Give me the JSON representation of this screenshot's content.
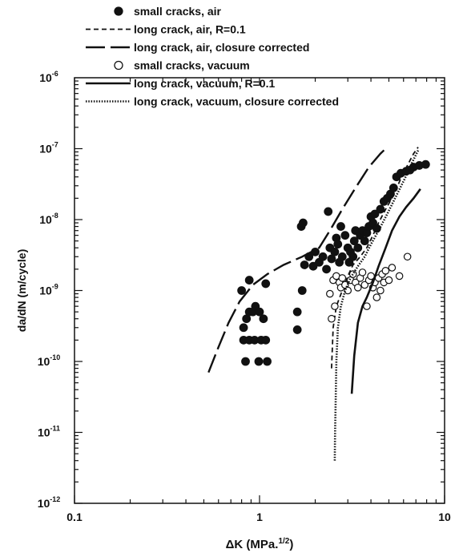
{
  "chart_data": {
    "type": "scatter",
    "title": "",
    "xlabel": "ΔK (MPa.",
    "xlabel_sup": "1/2",
    "xlabel_close": ")",
    "ylabel": "da/dN (m/cycle)",
    "xscale": "log",
    "yscale": "log",
    "xlim": [
      0.1,
      10
    ],
    "ylim": [
      1e-12,
      1e-06
    ],
    "x_ticks": [
      {
        "value": 0.1,
        "label": "0.1"
      },
      {
        "value": 1,
        "label": "1"
      },
      {
        "value": 10,
        "label": "10"
      }
    ],
    "y_ticks": [
      {
        "value": 1e-12,
        "base": "10",
        "exp": "-12"
      },
      {
        "value": 1e-11,
        "base": "10",
        "exp": "-11"
      },
      {
        "value": 1e-10,
        "base": "10",
        "exp": "-10"
      },
      {
        "value": 1e-09,
        "base": "10",
        "exp": "-9"
      },
      {
        "value": 1e-08,
        "base": "10",
        "exp": "-8"
      },
      {
        "value": 1e-07,
        "base": "10",
        "exp": "-7"
      },
      {
        "value": 1e-06,
        "base": "10",
        "exp": "-6"
      }
    ],
    "grid": false,
    "legend_position": "top-left",
    "series": [
      {
        "name": "small cracks, air",
        "style": "filled-circle",
        "points": [
          [
            0.8,
            1e-09
          ],
          [
            0.88,
            1.4e-09
          ],
          [
            0.82,
            3e-10
          ],
          [
            0.85,
            4e-10
          ],
          [
            0.88,
            5e-10
          ],
          [
            0.92,
            5e-10
          ],
          [
            0.95,
            6e-10
          ],
          [
            1.0,
            5e-10
          ],
          [
            1.05,
            4e-10
          ],
          [
            1.08,
            1.25e-09
          ],
          [
            0.82,
            2e-10
          ],
          [
            0.88,
            2e-10
          ],
          [
            0.94,
            2e-10
          ],
          [
            1.02,
            2e-10
          ],
          [
            1.08,
            2e-10
          ],
          [
            0.84,
            1e-10
          ],
          [
            0.99,
            1e-10
          ],
          [
            1.1,
            1e-10
          ],
          [
            1.6,
            2.8e-10
          ],
          [
            1.6,
            5e-10
          ],
          [
            1.7,
            1e-09
          ],
          [
            1.68,
            8e-09
          ],
          [
            1.72,
            9e-09
          ],
          [
            1.75,
            2.3e-09
          ],
          [
            1.85,
            3e-09
          ],
          [
            1.95,
            2.2e-09
          ],
          [
            2.0,
            3.5e-09
          ],
          [
            2.1,
            2.5e-09
          ],
          [
            2.2,
            3e-09
          ],
          [
            2.3,
            2e-09
          ],
          [
            2.35,
            1.3e-08
          ],
          [
            2.4,
            4e-09
          ],
          [
            2.45,
            2.8e-09
          ],
          [
            2.55,
            3.5e-09
          ],
          [
            2.6,
            5.5e-09
          ],
          [
            2.65,
            4.5e-09
          ],
          [
            2.7,
            2.5e-09
          ],
          [
            2.75,
            8e-09
          ],
          [
            2.8,
            3e-09
          ],
          [
            2.9,
            6e-09
          ],
          [
            3.0,
            4e-09
          ],
          [
            3.05,
            2.5e-09
          ],
          [
            3.1,
            3.5e-09
          ],
          [
            3.2,
            3e-09
          ],
          [
            3.25,
            5e-09
          ],
          [
            3.3,
            7e-09
          ],
          [
            3.4,
            4e-09
          ],
          [
            3.5,
            6e-09
          ],
          [
            3.6,
            7e-09
          ],
          [
            3.7,
            5e-09
          ],
          [
            3.8,
            6.5e-09
          ],
          [
            3.9,
            8e-09
          ],
          [
            4.0,
            1.1e-08
          ],
          [
            4.1,
            9e-09
          ],
          [
            4.2,
            1.2e-08
          ],
          [
            4.3,
            7.5e-09
          ],
          [
            4.5,
            1.4e-08
          ],
          [
            4.7,
            1.8e-08
          ],
          [
            4.9,
            2e-08
          ],
          [
            5.1,
            2.3e-08
          ],
          [
            5.3,
            2.8e-08
          ],
          [
            5.5,
            4e-08
          ],
          [
            5.8,
            4.5e-08
          ],
          [
            6.2,
            4.8e-08
          ],
          [
            6.8,
            5.5e-08
          ],
          [
            7.3,
            5.8e-08
          ],
          [
            7.9,
            6e-08
          ],
          [
            6.5,
            5e-08
          ]
        ]
      },
      {
        "name": "long crack, air, R=0.1",
        "style": "dashed",
        "points": [
          [
            2.45,
            8e-11
          ],
          [
            2.5,
            3e-10
          ],
          [
            2.6,
            6e-10
          ],
          [
            2.8,
            1e-09
          ],
          [
            3.0,
            1.6e-09
          ],
          [
            3.2,
            2.3e-09
          ],
          [
            3.5,
            3e-09
          ],
          [
            3.8,
            4e-09
          ],
          [
            4.1,
            6e-09
          ],
          [
            4.4,
            9e-09
          ],
          [
            4.8,
            1.4e-08
          ],
          [
            5.3,
            2.2e-08
          ],
          [
            5.8,
            3.8e-08
          ],
          [
            6.3,
            5.8e-08
          ],
          [
            6.8,
            8.5e-08
          ],
          [
            7.2,
            1.05e-07
          ]
        ]
      },
      {
        "name": "long crack, air, closure corrected",
        "style": "long-dash",
        "points": [
          [
            0.53,
            7e-11
          ],
          [
            0.6,
            1.6e-10
          ],
          [
            0.68,
            3.5e-10
          ],
          [
            0.78,
            7e-10
          ],
          [
            0.92,
            1.2e-09
          ],
          [
            1.1,
            1.7e-09
          ],
          [
            1.35,
            2.3e-09
          ],
          [
            1.7,
            3e-09
          ],
          [
            2.1,
            4e-09
          ],
          [
            2.4,
            7e-09
          ],
          [
            2.8,
            1.4e-08
          ],
          [
            3.3,
            2.8e-08
          ],
          [
            3.9,
            5.5e-08
          ],
          [
            4.5,
            8.5e-08
          ],
          [
            4.9,
            1.05e-07
          ]
        ]
      },
      {
        "name": "small cracks, vacuum",
        "style": "open-circle",
        "points": [
          [
            2.4,
            9e-10
          ],
          [
            2.45,
            4e-10
          ],
          [
            2.5,
            1.4e-09
          ],
          [
            2.55,
            6e-10
          ],
          [
            2.6,
            1.6e-09
          ],
          [
            2.7,
            1.3e-09
          ],
          [
            2.75,
            1.1e-09
          ],
          [
            2.8,
            1.5e-09
          ],
          [
            2.9,
            1.2e-09
          ],
          [
            3.0,
            1e-09
          ],
          [
            3.1,
            1.4e-09
          ],
          [
            3.2,
            1.7e-09
          ],
          [
            3.3,
            1.3e-09
          ],
          [
            3.4,
            1.1e-09
          ],
          [
            3.5,
            1.5e-09
          ],
          [
            3.6,
            1.8e-09
          ],
          [
            3.7,
            1.2e-09
          ],
          [
            3.8,
            6e-10
          ],
          [
            3.9,
            1.4e-09
          ],
          [
            4.0,
            1.6e-09
          ],
          [
            4.1,
            1.1e-09
          ],
          [
            4.2,
            1.3e-09
          ],
          [
            4.3,
            8e-10
          ],
          [
            4.4,
            1.5e-09
          ],
          [
            4.5,
            1e-09
          ],
          [
            4.6,
            1.7e-09
          ],
          [
            4.7,
            1.3e-09
          ],
          [
            4.8,
            1.9e-09
          ],
          [
            5.0,
            1.4e-09
          ],
          [
            5.2,
            2.1e-09
          ],
          [
            5.7,
            1.6e-09
          ],
          [
            6.3,
            3e-09
          ]
        ]
      },
      {
        "name": "long crack, vacuum, R=0.1",
        "style": "solid",
        "points": [
          [
            3.15,
            3.5e-11
          ],
          [
            3.25,
            1.2e-10
          ],
          [
            3.4,
            3.5e-10
          ],
          [
            3.6,
            6e-10
          ],
          [
            3.8,
            8e-10
          ],
          [
            4.1,
            1.3e-09
          ],
          [
            4.4,
            2.2e-09
          ],
          [
            4.8,
            4e-09
          ],
          [
            5.2,
            7e-09
          ],
          [
            5.7,
            1.1e-08
          ],
          [
            6.2,
            1.5e-08
          ],
          [
            6.8,
            2e-08
          ],
          [
            7.4,
            2.7e-08
          ]
        ]
      },
      {
        "name": "long crack, vacuum, closure corrected",
        "style": "dotted",
        "points": [
          [
            2.55,
            4e-12
          ],
          [
            2.56,
            1e-11
          ],
          [
            2.58,
            3e-11
          ],
          [
            2.6,
            1e-10
          ],
          [
            2.65,
            3e-10
          ],
          [
            2.75,
            6e-10
          ],
          [
            2.9,
            1e-09
          ],
          [
            3.1,
            1.5e-09
          ],
          [
            3.4,
            2.2e-09
          ],
          [
            3.7,
            3e-09
          ],
          [
            4.0,
            4.5e-09
          ],
          [
            4.4,
            7e-09
          ],
          [
            4.9,
            1.2e-08
          ],
          [
            5.5,
            2.2e-08
          ],
          [
            6.1,
            3.8e-08
          ],
          [
            6.7,
            6.5e-08
          ],
          [
            7.2,
            9.5e-08
          ]
        ]
      }
    ]
  }
}
